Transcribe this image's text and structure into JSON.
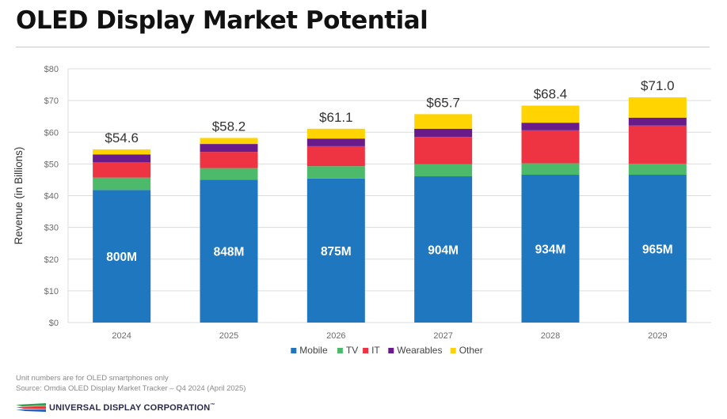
{
  "title": "OLED Display Market Potential",
  "notes": {
    "line1": "Unit numbers are for OLED smartphones only",
    "line2": "Source:  Omdia OLED Display Market Tracker – Q4 2024 (April 2025)"
  },
  "logo": {
    "text": "UNIVERSAL DISPLAY CORPORATION",
    "trademark": "™"
  },
  "colors": {
    "Mobile": "#1f77c0",
    "TV": "#4cba6a",
    "IT": "#ee3342",
    "Wearables": "#6a1b8a",
    "Other": "#ffd400"
  },
  "chart_data": {
    "type": "bar",
    "stacked": true,
    "categories": [
      "2024",
      "2025",
      "2026",
      "2027",
      "2028",
      "2029"
    ],
    "series": [
      {
        "name": "Mobile",
        "values": [
          41.8,
          45.0,
          45.4,
          46.1,
          46.6,
          46.6
        ]
      },
      {
        "name": "TV",
        "values": [
          3.9,
          3.7,
          3.9,
          3.8,
          3.6,
          3.5
        ]
      },
      {
        "name": "IT",
        "values": [
          4.8,
          5.1,
          6.3,
          8.6,
          10.4,
          12.0
        ]
      },
      {
        "name": "Wearables",
        "values": [
          2.5,
          2.5,
          2.4,
          2.6,
          2.4,
          2.5
        ]
      },
      {
        "name": "Other",
        "values": [
          1.6,
          1.9,
          3.1,
          4.6,
          5.4,
          6.4
        ]
      }
    ],
    "totals": [
      "$54.6",
      "$58.2",
      "$61.1",
      "$65.7",
      "$68.4",
      "$71.0"
    ],
    "unit_labels": [
      "800M",
      "848M",
      "875M",
      "904M",
      "934M",
      "965M"
    ],
    "ylabel": "Revenue (in Billions)",
    "ylim": [
      0,
      80
    ],
    "ytick_values": [
      0,
      10,
      20,
      30,
      40,
      50,
      60,
      70,
      80
    ],
    "ytick_labels": [
      "$0",
      "$10",
      "$20",
      "$30",
      "$40",
      "$50",
      "$60",
      "$70",
      "$80"
    ],
    "grid": true,
    "legend_position": "bottom-center"
  }
}
